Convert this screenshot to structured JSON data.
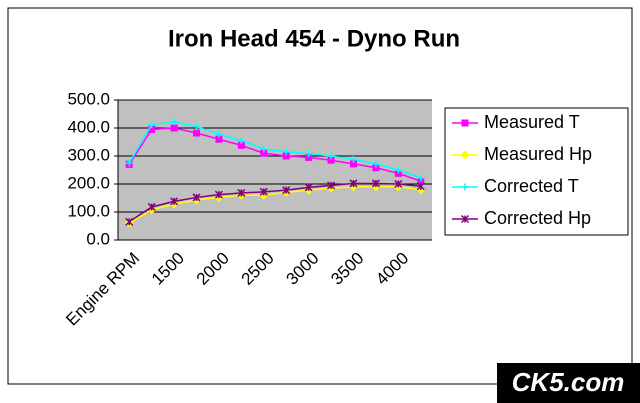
{
  "chart_data": {
    "type": "line",
    "title": "Iron Head 454 - Dyno Run",
    "categories": [
      "Engine RPM",
      null,
      "1500",
      null,
      "2000",
      null,
      "2500",
      null,
      "3000",
      null,
      "3500",
      null,
      "4000",
      null
    ],
    "series": [
      {
        "name": "Measured T",
        "color": "#ff00ff",
        "marker": "square",
        "values": [
          270,
          395,
          400,
          382,
          360,
          338,
          310,
          300,
          295,
          285,
          272,
          258,
          238,
          210
        ]
      },
      {
        "name": "Measured Hp",
        "color": "#ffff00",
        "marker": "diamond",
        "values": [
          60,
          108,
          128,
          143,
          152,
          160,
          160,
          170,
          178,
          185,
          190,
          190,
          190,
          180
        ]
      },
      {
        "name": "Corrected T",
        "color": "#00ffff",
        "marker": "cross",
        "values": [
          275,
          412,
          422,
          405,
          378,
          355,
          325,
          315,
          308,
          300,
          288,
          272,
          250,
          222
        ]
      },
      {
        "name": "Corrected Hp",
        "color": "#800080",
        "marker": "star",
        "values": [
          65,
          118,
          138,
          152,
          162,
          168,
          172,
          178,
          188,
          195,
          202,
          202,
          200,
          192
        ]
      }
    ],
    "ylim": [
      0,
      500
    ],
    "yticks": [
      {
        "value": 0,
        "label": "0.0"
      },
      {
        "value": 100,
        "label": "100.0"
      },
      {
        "value": 200,
        "label": "200.0"
      },
      {
        "value": 300,
        "label": "300.0"
      },
      {
        "value": 400,
        "label": "400.0"
      },
      {
        "value": 500,
        "label": "500.0"
      }
    ],
    "grid": true,
    "legend": "right",
    "plot_background": "#c0c0c0",
    "watermark": "CK5.com"
  }
}
